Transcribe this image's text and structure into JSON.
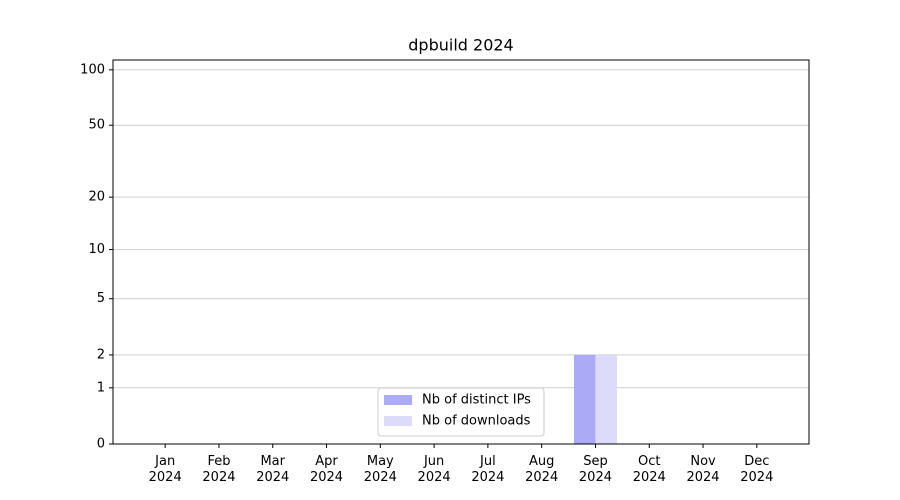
{
  "chart_data": {
    "type": "bar",
    "title": "dpbuild 2024",
    "categories": [
      "Jan\n2024",
      "Feb\n2024",
      "Mar\n2024",
      "Apr\n2024",
      "May\n2024",
      "Jun\n2024",
      "Jul\n2024",
      "Aug\n2024",
      "Sep\n2024",
      "Oct\n2024",
      "Nov\n2024",
      "Dec\n2024"
    ],
    "series": [
      {
        "name": "Nb of distinct IPs",
        "color": "#aaaaf6",
        "values": [
          0,
          0,
          0,
          0,
          0,
          0,
          0,
          0,
          2,
          0,
          0,
          0
        ]
      },
      {
        "name": "Nb of downloads",
        "color": "#dcdcfa",
        "values": [
          0,
          0,
          0,
          0,
          0,
          0,
          0,
          0,
          2,
          0,
          0,
          0
        ]
      }
    ],
    "yscale": "log1p",
    "ylim": [
      0,
      113
    ],
    "yticks": [
      0,
      1,
      2,
      5,
      10,
      20,
      50,
      100
    ],
    "grid": true,
    "legend": "lower center"
  }
}
